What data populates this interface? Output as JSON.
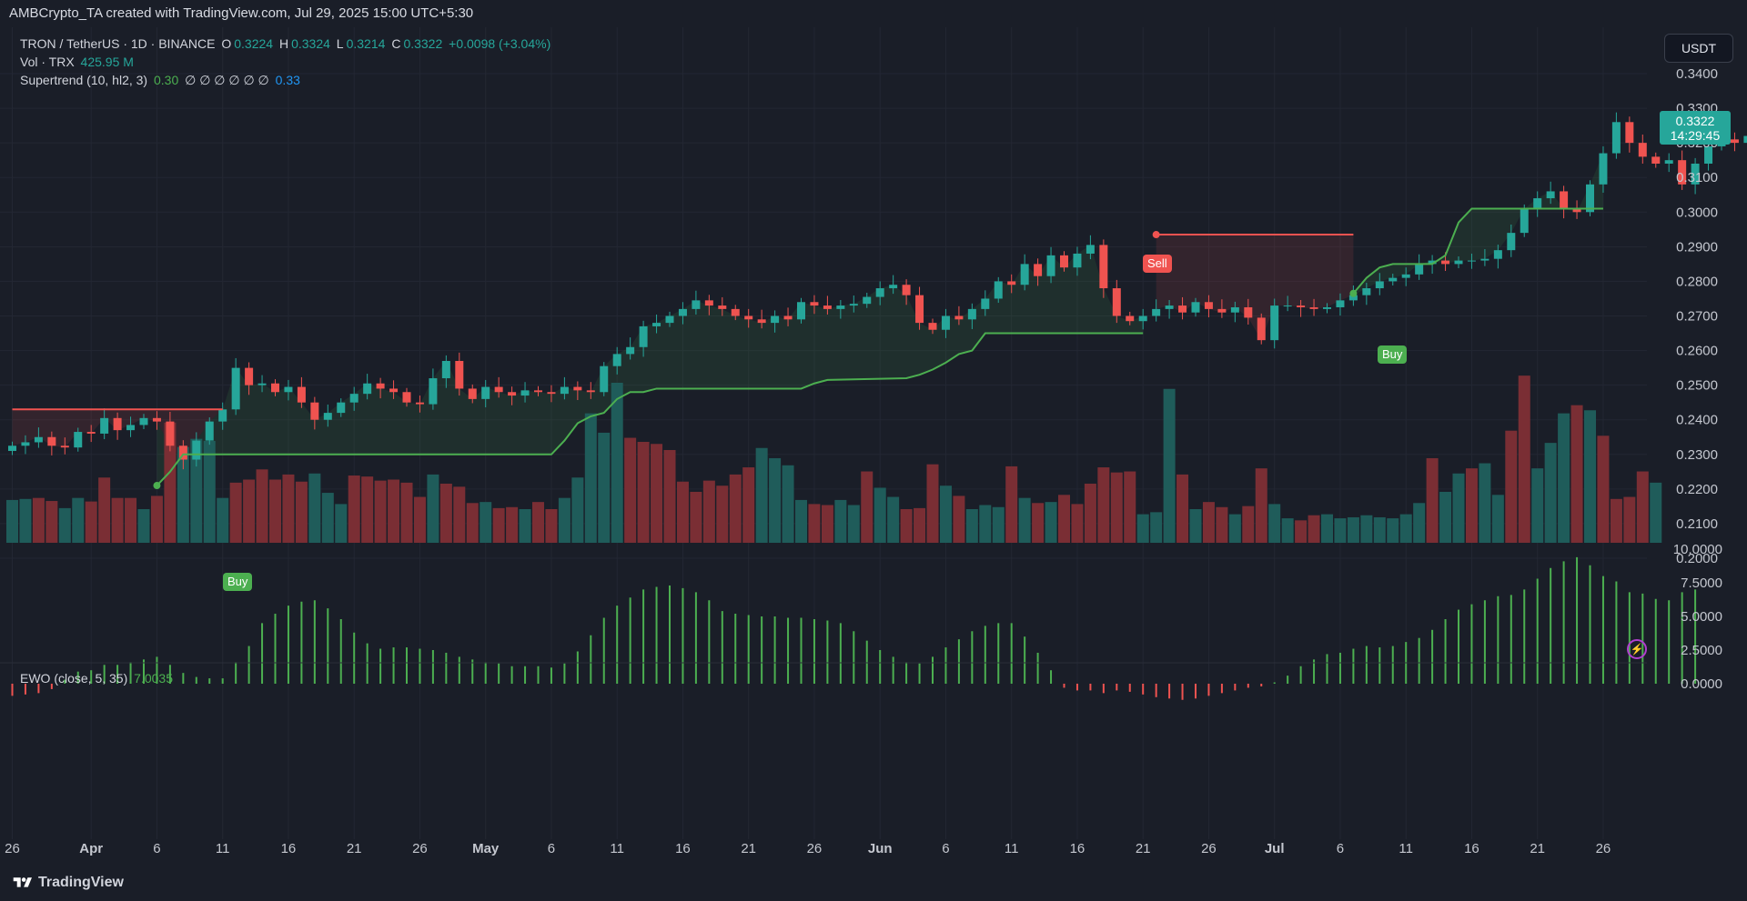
{
  "header": {
    "title": "AMBCrypto_TA created with TradingView.com, Jul 29, 2025 15:00 UTC+5:30"
  },
  "legend": {
    "symbol": "TRON / TetherUS · 1D · BINANCE",
    "o_label": "O",
    "o_value": "0.3224",
    "h_label": "H",
    "h_value": "0.3324",
    "l_label": "L",
    "l_value": "0.3214",
    "c_label": "C",
    "c_value": "0.3322",
    "change": "+0.0098 (+3.04%)",
    "vol_label": "Vol · TRX",
    "vol_value": "425.95 M",
    "st_label": "Supertrend (10, hl2, 3)",
    "st_value": "0.30",
    "st_nulls": "∅ ∅ ∅ ∅ ∅ ∅",
    "st_value2": "0.33",
    "ewo_label": "EWO (close, 5, 35)",
    "ewo_value": "7.0035"
  },
  "currency_button": "USDT",
  "price_tag": {
    "price": "0.3322",
    "countdown": "14:29:45"
  },
  "signals": {
    "buy": "Buy",
    "sell": "Sell"
  },
  "footer": {
    "brand": "TradingView"
  },
  "colors": {
    "up": "#26a69a",
    "down": "#ef5350",
    "supertrend_up": "#4caf50",
    "supertrend_down": "#f05350",
    "background": "#1a1e28"
  },
  "icons": {
    "flash": "lightning-icon",
    "brand": "tradingview-logo"
  },
  "chart_data": [
    {
      "type": "candlestick",
      "title": "TRON / TetherUS · 1D · BINANCE",
      "y_ticks": [
        "0.2000",
        "0.2100",
        "0.2200",
        "0.2300",
        "0.2400",
        "0.2500",
        "0.2600",
        "0.2700",
        "0.2800",
        "0.2900",
        "0.3000",
        "0.3100",
        "0.3200",
        "0.3300",
        "0.3400"
      ],
      "ylim": [
        0.1962,
        0.3474
      ],
      "x_ticks": [
        "26",
        "Apr",
        "6",
        "11",
        "16",
        "21",
        "26",
        "May",
        "6",
        "11",
        "16",
        "21",
        "26",
        "Jun",
        "6",
        "11",
        "16",
        "21",
        "26",
        "Jul",
        "6",
        "11",
        "16",
        "21",
        "26"
      ],
      "x_tick_day_index": [
        0,
        6,
        11,
        16,
        21,
        26,
        31,
        36,
        41,
        46,
        51,
        56,
        61,
        66,
        71,
        76,
        81,
        86,
        91,
        96,
        101,
        106,
        111,
        116,
        121
      ],
      "x_first_date": "2025-03-26",
      "closes": [
        0.2325,
        0.2335,
        0.235,
        0.2325,
        0.232,
        0.2365,
        0.236,
        0.2405,
        0.237,
        0.2385,
        0.2405,
        0.2395,
        0.2325,
        0.2285,
        0.234,
        0.2395,
        0.243,
        0.255,
        0.25,
        0.2505,
        0.248,
        0.2495,
        0.245,
        0.24,
        0.242,
        0.245,
        0.2475,
        0.2505,
        0.249,
        0.248,
        0.245,
        0.2445,
        0.252,
        0.257,
        0.249,
        0.246,
        0.2495,
        0.248,
        0.247,
        0.2485,
        0.248,
        0.2475,
        0.2495,
        0.2485,
        0.248,
        0.2555,
        0.259,
        0.261,
        0.267,
        0.268,
        0.27,
        0.272,
        0.2745,
        0.273,
        0.272,
        0.27,
        0.269,
        0.268,
        0.27,
        0.269,
        0.274,
        0.273,
        0.272,
        0.273,
        0.2735,
        0.2755,
        0.278,
        0.279,
        0.276,
        0.268,
        0.266,
        0.27,
        0.269,
        0.272,
        0.275,
        0.28,
        0.279,
        0.285,
        0.2815,
        0.2875,
        0.284,
        0.288,
        0.2905,
        0.278,
        0.27,
        0.2685,
        0.27,
        0.272,
        0.273,
        0.271,
        0.274,
        0.272,
        0.271,
        0.2725,
        0.2695,
        0.263,
        0.273,
        0.273,
        0.2725,
        0.272,
        0.2725,
        0.2745,
        0.276,
        0.278,
        0.28,
        0.281,
        0.282,
        0.285,
        0.286,
        0.285,
        0.286,
        0.286,
        0.2865,
        0.289,
        0.294,
        0.301,
        0.304,
        0.306,
        0.301,
        0.3,
        0.308,
        0.317,
        0.326,
        0.32,
        0.316,
        0.314,
        0.315,
        0.308,
        0.314,
        0.319,
        0.321,
        0.32,
        0.322,
        0.325,
        0.321,
        0.32,
        0.3224,
        0.3322
      ],
      "supertrend_up_segments": [
        [
          11,
          0.221
        ],
        [
          12,
          0.225
        ],
        [
          13,
          0.23
        ],
        [
          41,
          0.23
        ],
        [
          42,
          0.234
        ],
        [
          43,
          0.239
        ],
        [
          44,
          0.241
        ],
        [
          45,
          0.242
        ],
        [
          46,
          0.246
        ],
        [
          47,
          0.248
        ],
        [
          48,
          0.248
        ],
        [
          49,
          0.249
        ],
        [
          50,
          0.249
        ],
        [
          51,
          0.249
        ],
        [
          60,
          0.249
        ],
        [
          61,
          0.2505
        ],
        [
          62,
          0.2515
        ],
        [
          68,
          0.252
        ],
        [
          69,
          0.253
        ],
        [
          70,
          0.2545
        ],
        [
          71,
          0.2565
        ],
        [
          72,
          0.259
        ],
        [
          73,
          0.26
        ],
        [
          74,
          0.265
        ],
        [
          86,
          0.265
        ]
      ],
      "supertrend_down_segments": [
        [
          0,
          0.243
        ],
        [
          16,
          0.243
        ],
        [
          87,
          0.2935
        ],
        [
          102,
          0.2935
        ]
      ],
      "supertrend_up_segments_2": [
        [
          102,
          0.2765
        ],
        [
          103,
          0.281
        ],
        [
          104,
          0.284
        ],
        [
          105,
          0.285
        ],
        [
          108,
          0.285
        ],
        [
          109,
          0.2875
        ],
        [
          110,
          0.297
        ],
        [
          111,
          0.301
        ],
        [
          121,
          0.301
        ]
      ],
      "volume_m": [
        420,
        430,
        440,
        410,
        340,
        440,
        405,
        640,
        440,
        440,
        330,
        460,
        1180,
        940,
        1020,
        1000,
        440,
        590,
        620,
        720,
        620,
        670,
        600,
        680,
        490,
        380,
        660,
        650,
        610,
        620,
        590,
        450,
        670,
        580,
        550,
        390,
        400,
        340,
        350,
        330,
        400,
        330,
        440,
        640,
        1270,
        1080,
        1570,
        1030,
        990,
        970,
        910,
        600,
        500,
        610,
        560,
        670,
        740,
        930,
        830,
        760,
        420,
        380,
        370,
        420,
        370,
        700,
        540,
        450,
        330,
        340,
        770,
        560,
        460,
        330,
        370,
        350,
        750,
        440,
        390,
        400,
        470,
        380,
        580,
        740,
        690,
        700,
        280,
        300,
        1510,
        670,
        330,
        400,
        350,
        280,
        360,
        730,
        380,
        240,
        220,
        270,
        280,
        240,
        250,
        270,
        250,
        240,
        280,
        390,
        830,
        500,
        680,
        730,
        780,
        470,
        1100,
        1640,
        730,
        980,
        1270,
        1350,
        1300,
        1050,
        430,
        450,
        700,
        590
      ],
      "volume_up": [
        true,
        true,
        false,
        false,
        true,
        true,
        false,
        false,
        false,
        false,
        true,
        false,
        false,
        true,
        true,
        true,
        true,
        false,
        false,
        false,
        false,
        false,
        false,
        true,
        true,
        true,
        false,
        false,
        false,
        false,
        false,
        false,
        true,
        false,
        false,
        false,
        true,
        false,
        false,
        true,
        false,
        false,
        true,
        true,
        true,
        true,
        true,
        false,
        false,
        false,
        false,
        false,
        false,
        false,
        false,
        false,
        false,
        true,
        true,
        true,
        true,
        false,
        false,
        true,
        true,
        false,
        true,
        true,
        false,
        false,
        false,
        true,
        false,
        true,
        true,
        true,
        false,
        true,
        false,
        true,
        false,
        false,
        false,
        false,
        false,
        false,
        true,
        true,
        true,
        false,
        true,
        false,
        false,
        true,
        false,
        false,
        true,
        true,
        false,
        false,
        true,
        true,
        true,
        true,
        true,
        true,
        true,
        true,
        false,
        true,
        true,
        false,
        true,
        true,
        false,
        false,
        true,
        true,
        true,
        false,
        true,
        false,
        false,
        false,
        false,
        true,
        true,
        false,
        true,
        true,
        true,
        true,
        false,
        true,
        true
      ],
      "volume_note": "Vol · TRX 425.95 M"
    },
    {
      "type": "bar",
      "title": "EWO (close, 5, 35)",
      "y_ticks": [
        "0.0000",
        "2.5000",
        "5.0000",
        "7.5000",
        "10.0000"
      ],
      "ylim": [
        -1.5,
        10.6
      ],
      "values": [
        -0.9,
        -0.8,
        -0.7,
        -0.4,
        0.3,
        0.9,
        1.0,
        1.4,
        1.4,
        1.6,
        1.8,
        2.0,
        1.4,
        0.8,
        0.5,
        0.4,
        0.4,
        1.6,
        2.8,
        4.5,
        5.2,
        5.8,
        6.1,
        6.2,
        5.6,
        4.8,
        3.8,
        3.0,
        2.6,
        2.7,
        2.7,
        2.6,
        2.5,
        2.3,
        2.0,
        1.8,
        1.6,
        1.5,
        1.3,
        1.3,
        1.3,
        1.2,
        1.5,
        2.4,
        3.6,
        4.9,
        5.8,
        6.4,
        7.0,
        7.2,
        7.3,
        7.1,
        6.8,
        6.2,
        5.4,
        5.2,
        5.1,
        5.0,
        5.0,
        4.9,
        4.9,
        4.8,
        4.7,
        4.5,
        3.9,
        3.2,
        2.5,
        2.0,
        1.6,
        1.5,
        2.0,
        2.7,
        3.3,
        3.9,
        4.3,
        4.5,
        4.5,
        3.5,
        2.3,
        1.0,
        -0.3,
        -0.5,
        -0.5,
        -0.7,
        -0.5,
        -0.6,
        -0.8,
        -1.0,
        -1.1,
        -1.2,
        -1.1,
        -0.9,
        -0.7,
        -0.5,
        -0.3,
        -0.2,
        0.1,
        0.6,
        1.3,
        1.8,
        2.2,
        2.3,
        2.6,
        2.8,
        2.7,
        2.8,
        3.1,
        3.4,
        4.0,
        4.8,
        5.5,
        5.9,
        6.2,
        6.5,
        6.6,
        7.0,
        7.8,
        8.6,
        9.1,
        9.4,
        8.8,
        8.0,
        7.6,
        6.8,
        6.7,
        6.3,
        6.2,
        6.8,
        7.0
      ],
      "positive_color": "#4caf50",
      "negative_color": "#ef5350"
    }
  ]
}
